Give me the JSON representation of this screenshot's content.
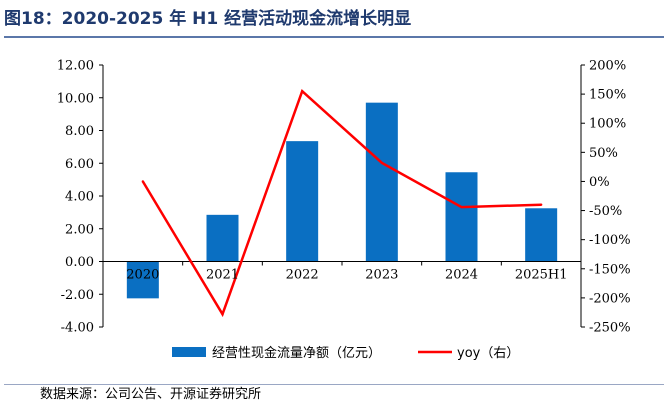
{
  "title": "图18：2020-2025 年 H1 经营活动现金流增长明显",
  "source": "数据来源：公司公告、开源证券研究所",
  "colors": {
    "bar": "#0a6fc2",
    "line": "#ff0000",
    "title": "#1f3a6e"
  },
  "chart_data": {
    "type": "bar",
    "categories": [
      "2020",
      "2021",
      "2022",
      "2023",
      "2024",
      "2025H1"
    ],
    "series": [
      {
        "name": "经营性现金流量净额（亿元）",
        "type": "bar",
        "axis": "left",
        "values": [
          -2.25,
          2.85,
          7.35,
          9.7,
          5.45,
          3.25
        ]
      },
      {
        "name": "yoy（右）",
        "type": "line",
        "axis": "right",
        "values": [
          0,
          -228,
          155,
          32,
          -44,
          -40
        ]
      }
    ],
    "y_left": {
      "ylim": [
        -4,
        12
      ],
      "ticks": [
        "-4.00",
        "-2.00",
        "0.00",
        "2.00",
        "4.00",
        "6.00",
        "8.00",
        "10.00",
        "12.00"
      ]
    },
    "y_right": {
      "ylim": [
        -250,
        200
      ],
      "ticks": [
        "-250%",
        "-200%",
        "-150%",
        "-100%",
        "-50%",
        "0%",
        "50%",
        "100%",
        "150%",
        "200%"
      ]
    },
    "grid": false,
    "legend": "bottom-center"
  }
}
